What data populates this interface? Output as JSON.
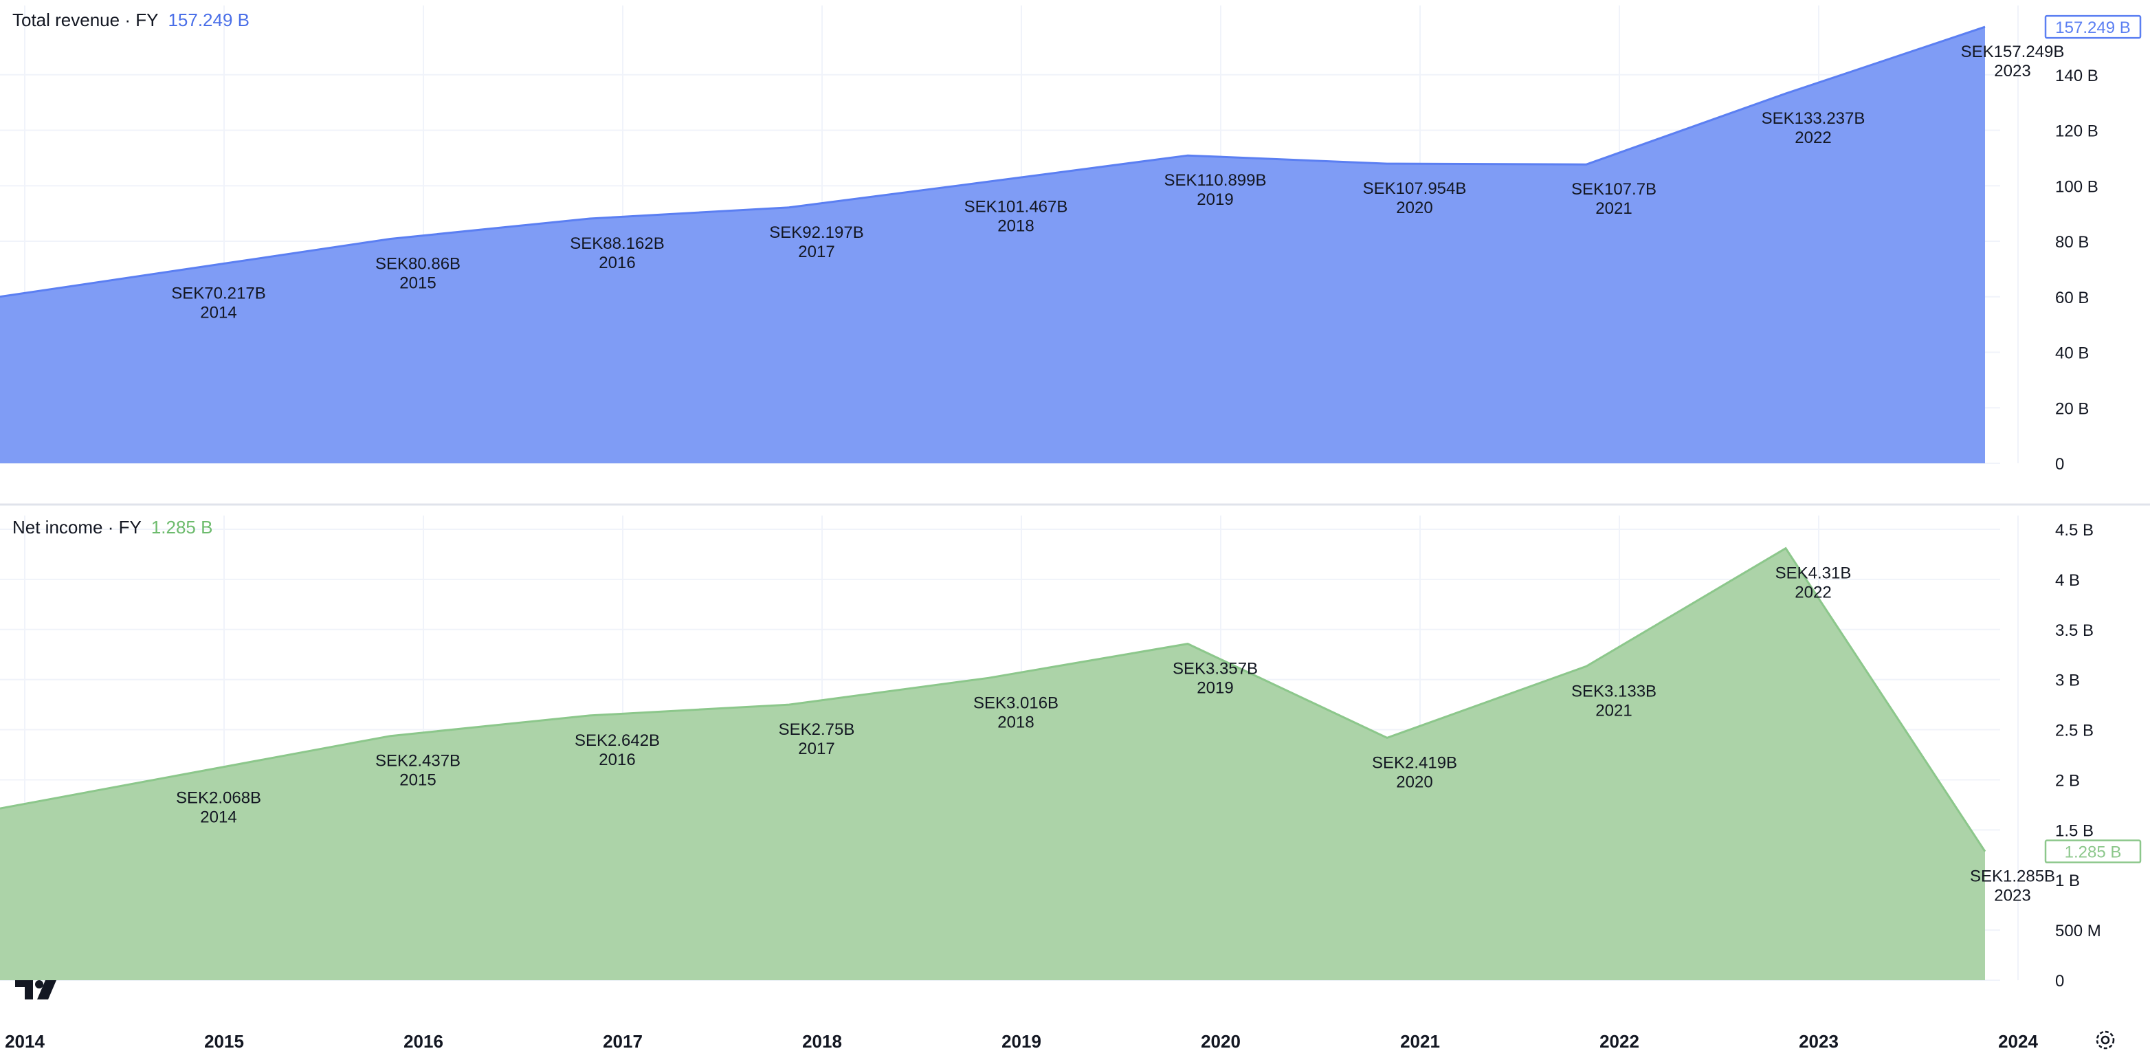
{
  "chart_data": [
    {
      "type": "area",
      "legend_title": "Total revenue · FY",
      "legend_value": "157.249 B",
      "color": "#5b7ff2",
      "fill": "#7f9cf5",
      "x": [
        2014,
        2015,
        2016,
        2017,
        2018,
        2019,
        2020,
        2021,
        2022,
        2023
      ],
      "values": [
        70.217,
        80.86,
        88.162,
        92.197,
        101.467,
        110.899,
        107.954,
        107.7,
        133.237,
        157.249
      ],
      "point_labels": [
        "SEK70.217B",
        "SEK80.86B",
        "SEK88.162B",
        "SEK92.197B",
        "SEK101.467B",
        "SEK110.899B",
        "SEK107.954B",
        "SEK107.7B",
        "SEK133.237B",
        "SEK157.249B"
      ],
      "year_labels": [
        "2014",
        "2015",
        "2016",
        "2017",
        "2018",
        "2019",
        "2020",
        "2021",
        "2022",
        "2023"
      ],
      "ylim": [
        0,
        160
      ],
      "yticks": [
        0,
        20,
        40,
        60,
        80,
        100,
        120,
        140
      ],
      "ytick_labels": [
        "0",
        "20 B",
        "40 B",
        "60 B",
        "80 B",
        "100 B",
        "120 B",
        "140 B"
      ],
      "last_value_label": "157.249 B",
      "grid": true
    },
    {
      "type": "area",
      "legend_title": "Net income · FY",
      "legend_value": "1.285 B",
      "color": "#8cc78b",
      "fill": "#acd3a8",
      "x": [
        2014,
        2015,
        2016,
        2017,
        2018,
        2019,
        2020,
        2021,
        2022,
        2023
      ],
      "values": [
        2.068,
        2.437,
        2.642,
        2.75,
        3.016,
        3.357,
        2.419,
        3.133,
        4.31,
        1.285
      ],
      "point_labels": [
        "SEK2.068B",
        "SEK2.437B",
        "SEK2.642B",
        "SEK2.75B",
        "SEK3.016B",
        "SEK3.357B",
        "SEK2.419B",
        "SEK3.133B",
        "SEK4.31B",
        "SEK1.285B"
      ],
      "year_labels": [
        "2014",
        "2015",
        "2016",
        "2017",
        "2018",
        "2019",
        "2020",
        "2021",
        "2022",
        "2023"
      ],
      "ylim": [
        0,
        4.5
      ],
      "yticks": [
        0,
        0.5,
        1,
        1.5,
        2,
        2.5,
        3,
        3.5,
        4,
        4.5
      ],
      "ytick_labels": [
        "0",
        "500 M",
        "1 B",
        "1.5 B",
        "2 B",
        "2.5 B",
        "3 B",
        "3.5 B",
        "4 B",
        "4.5 B"
      ],
      "last_value_label": "1.285 B",
      "grid": true
    }
  ],
  "time_axis": {
    "ticks": [
      2014,
      2015,
      2016,
      2017,
      2018,
      2019,
      2020,
      2021,
      2022,
      2023,
      2024
    ],
    "labels": [
      "2014",
      "2015",
      "2016",
      "2017",
      "2018",
      "2019",
      "2020",
      "2021",
      "2022",
      "2023",
      "2024"
    ]
  },
  "icons": {
    "logo": "tradingview-logo",
    "settings": "gear-icon"
  }
}
